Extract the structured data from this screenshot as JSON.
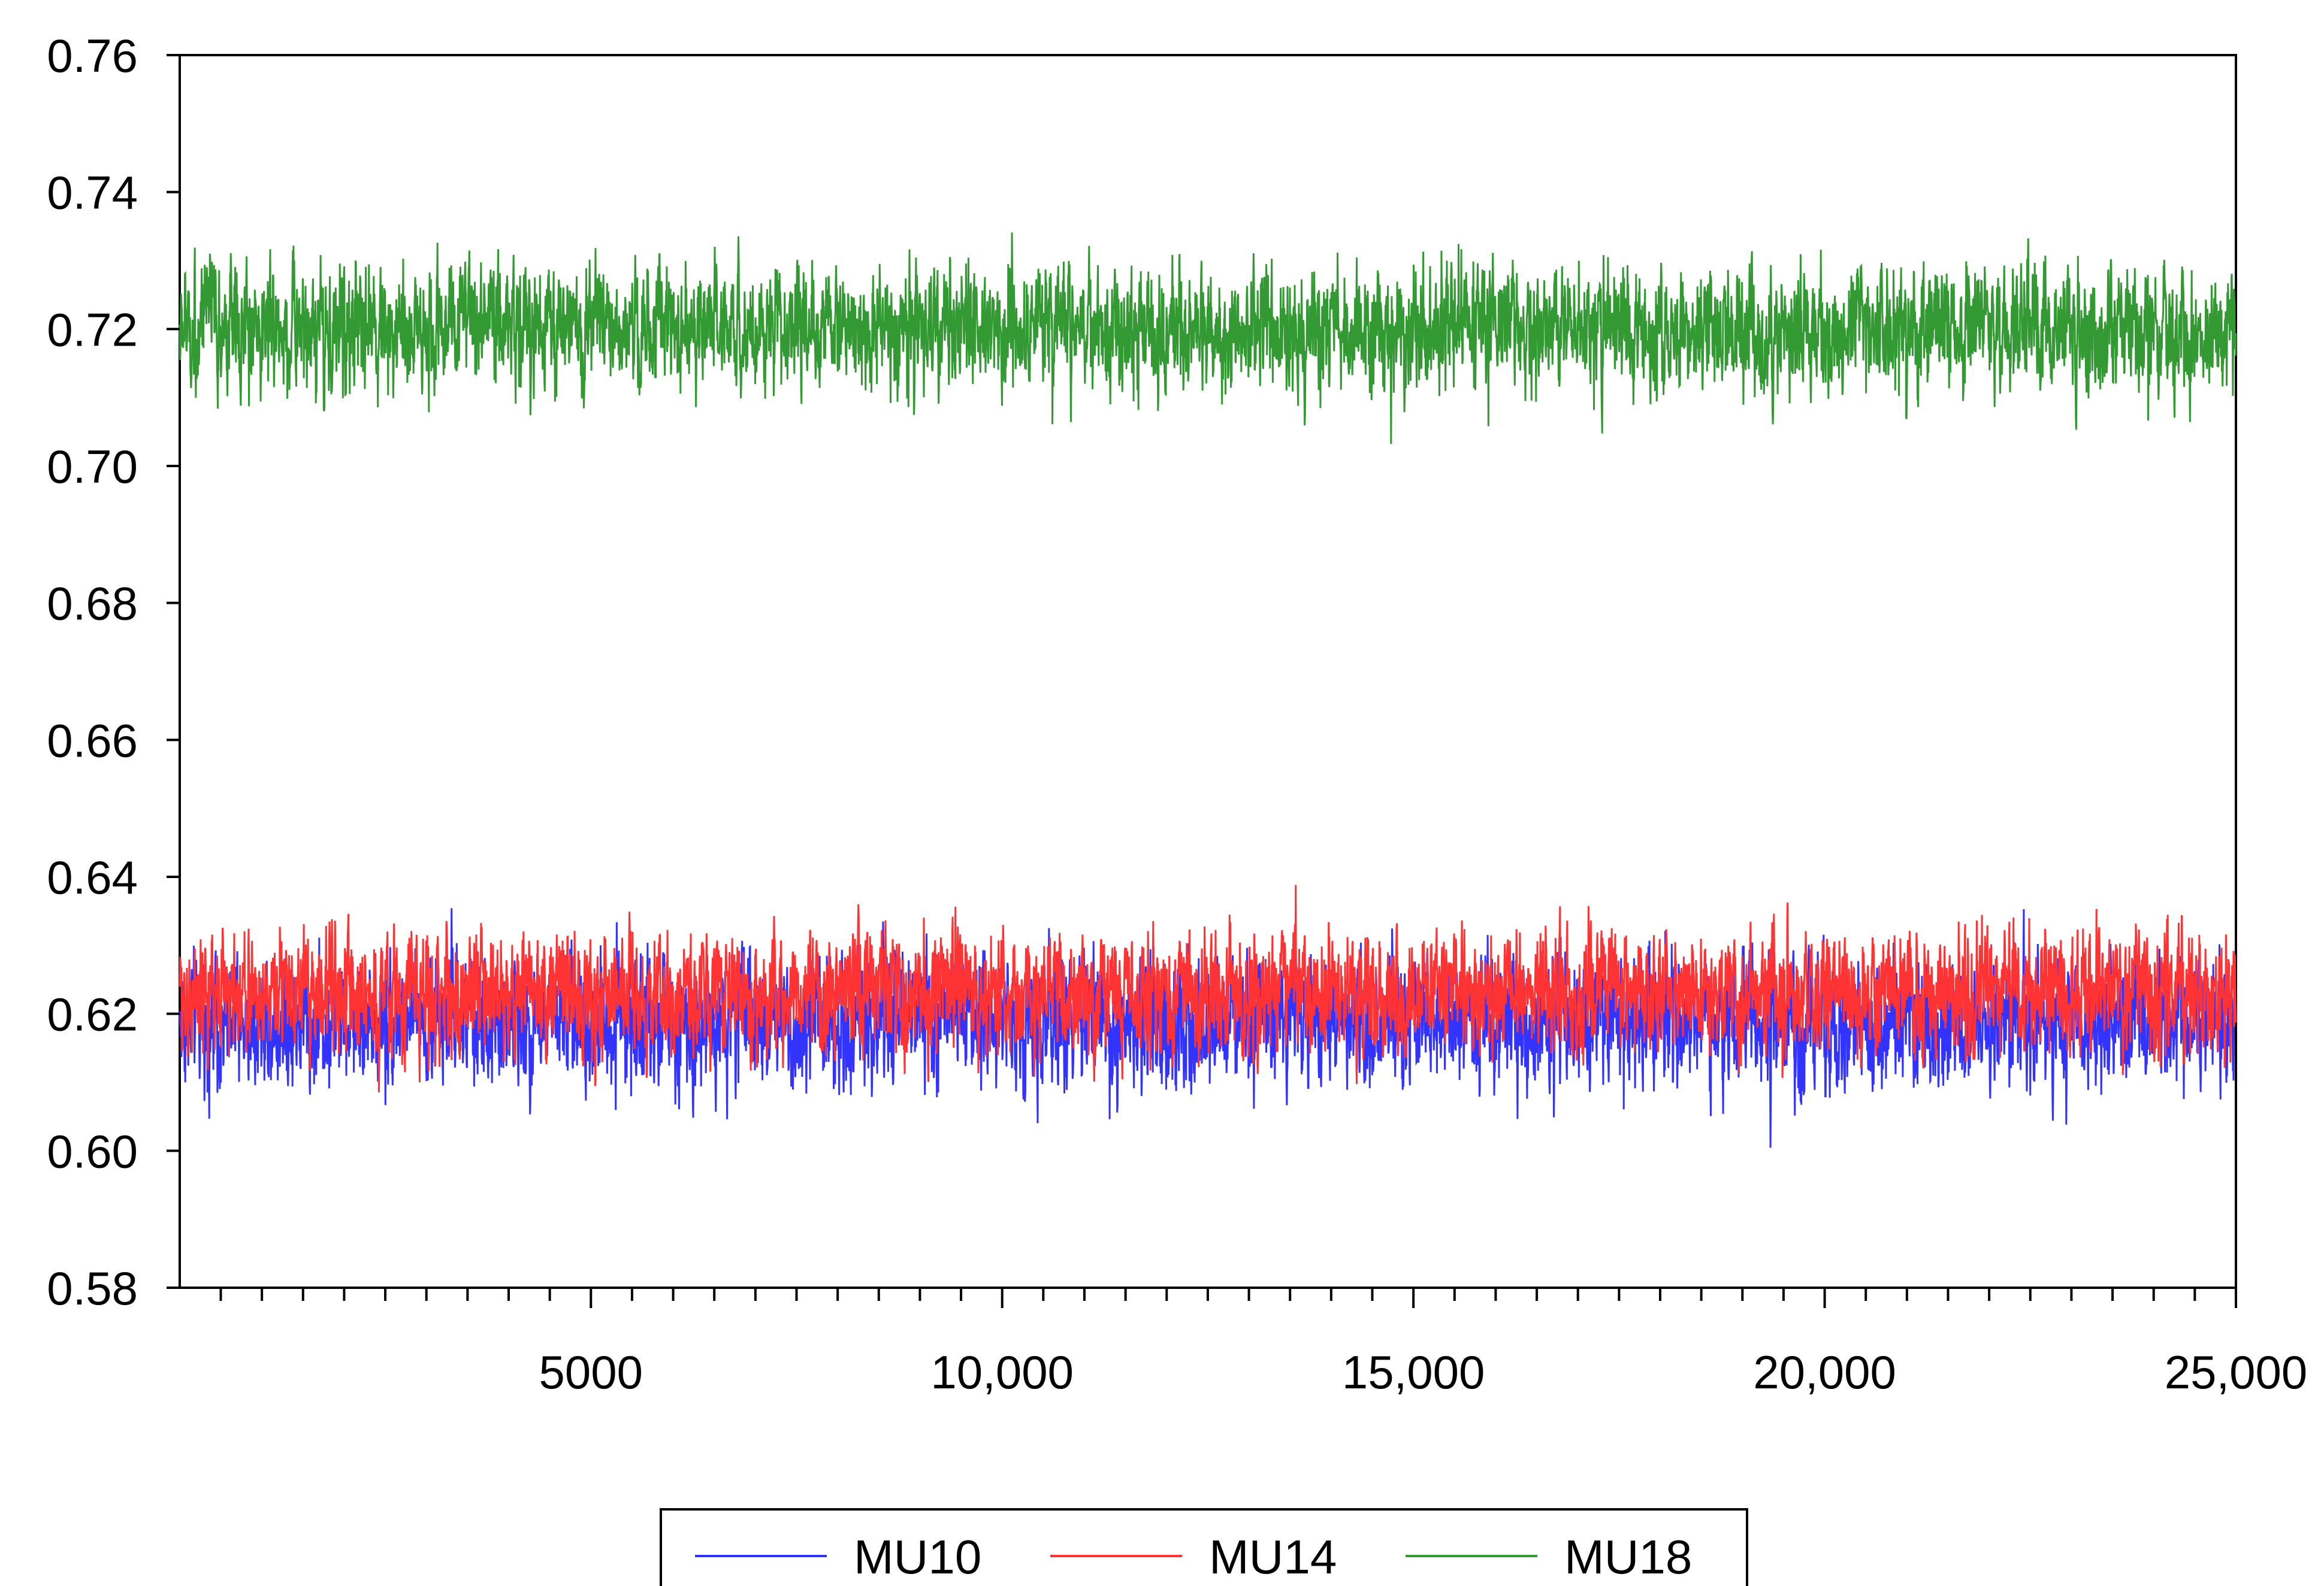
{
  "chart_data": {
    "type": "line",
    "title": "",
    "xlabel": "",
    "ylabel": "",
    "xlim": [
      1,
      25000
    ],
    "ylim": [
      0.58,
      0.76
    ],
    "yticks": [
      0.58,
      0.6,
      0.62,
      0.64,
      0.66,
      0.68,
      0.7,
      0.72,
      0.74,
      0.76
    ],
    "ytick_labels": [
      "0.58",
      "0.60",
      "0.62",
      "0.64",
      "0.66",
      "0.68",
      "0.70",
      "0.72",
      "0.74",
      "0.76"
    ],
    "xticks": [
      5000,
      10000,
      15000,
      20000,
      25000
    ],
    "xtick_labels": [
      "5000",
      "10,000",
      "15,000",
      "20,000",
      "25,000"
    ],
    "grid": false,
    "legend_position": "bottom-center",
    "series": [
      {
        "name": "MU10",
        "color": "#3333ff",
        "mean": 0.619,
        "min": 0.593,
        "max": 0.649,
        "n": 25000
      },
      {
        "name": "MU14",
        "color": "#ff3333",
        "mean": 0.623,
        "min": 0.601,
        "max": 0.652,
        "n": 25000
      },
      {
        "name": "MU18",
        "color": "#339933",
        "mean": 0.72,
        "min": 0.694,
        "max": 0.748,
        "n": 25000
      }
    ]
  }
}
